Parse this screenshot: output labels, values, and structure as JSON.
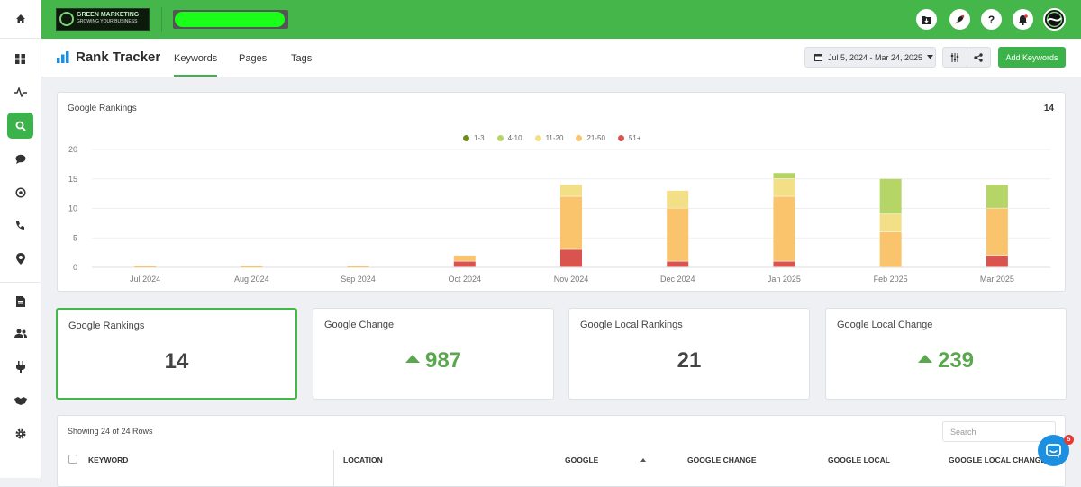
{
  "app": {
    "logo_text": "GREEN MARKETING",
    "logo_tagline": "GROWING YOUR BUSINESS"
  },
  "sidebar": {
    "items": [
      {
        "name": "home",
        "icon": "home-icon"
      },
      {
        "name": "dashboard",
        "icon": "grid-icon"
      },
      {
        "name": "activity",
        "icon": "pulse-icon"
      },
      {
        "name": "seo",
        "icon": "search-icon",
        "active": true
      },
      {
        "name": "messages",
        "icon": "chat-icon"
      },
      {
        "name": "reviews",
        "icon": "dialog-icon"
      },
      {
        "name": "calls",
        "icon": "phone-icon"
      },
      {
        "name": "locations",
        "icon": "map-pin-icon"
      },
      {
        "name": "reports",
        "icon": "document-icon"
      },
      {
        "name": "users",
        "icon": "users-icon"
      },
      {
        "name": "integrations",
        "icon": "plug-icon"
      },
      {
        "name": "partners",
        "icon": "handshake-icon"
      },
      {
        "name": "settings",
        "icon": "gear-icon"
      }
    ]
  },
  "topbar": {
    "icons": [
      "folder-download-icon",
      "rocket-icon",
      "help-icon",
      "bell-icon",
      "avatar"
    ]
  },
  "header": {
    "title": "Rank Tracker",
    "tabs": [
      {
        "label": "Keywords",
        "active": true
      },
      {
        "label": "Pages",
        "active": false
      },
      {
        "label": "Tags",
        "active": false
      }
    ],
    "date_range": "Jul 5, 2024 - Mar 24, 2025",
    "add_button": "Add Keywords"
  },
  "chart_card": {
    "title": "Google Rankings",
    "count": "14"
  },
  "chart_data": {
    "type": "bar",
    "stacked": true,
    "categories": [
      "Jul 2024",
      "Aug 2024",
      "Sep 2024",
      "Oct 2024",
      "Nov 2024",
      "Dec 2024",
      "Jan 2025",
      "Feb 2025",
      "Mar 2025"
    ],
    "series": [
      {
        "name": "51+",
        "color": "#d9534f",
        "values": [
          0,
          0,
          0,
          1,
          3,
          1,
          1,
          0,
          2
        ]
      },
      {
        "name": "21-50",
        "color": "#f9c46b",
        "values": [
          0,
          0,
          0,
          1,
          9,
          9,
          11,
          6,
          8
        ]
      },
      {
        "name": "11-20",
        "color": "#f3df86",
        "values": [
          0,
          0,
          0,
          0,
          2,
          3,
          3,
          3,
          0
        ]
      },
      {
        "name": "4-10",
        "color": "#b5d667",
        "values": [
          0,
          0,
          0,
          0,
          0,
          0,
          1,
          6,
          4
        ]
      },
      {
        "name": "1-3",
        "color": "#6e8b1e",
        "values": [
          0,
          0,
          0,
          0,
          0,
          0,
          0,
          0,
          0
        ]
      }
    ],
    "legend_order": [
      "1-3",
      "4-10",
      "11-20",
      "21-50",
      "51+"
    ],
    "yticks": [
      0,
      5,
      10,
      15,
      20
    ],
    "ylim": [
      0,
      20
    ],
    "grid": true,
    "legend_position": "top-center"
  },
  "stats": [
    {
      "label": "Google Rankings",
      "value": "14",
      "trend": "none",
      "selected": true
    },
    {
      "label": "Google Change",
      "value": "987",
      "trend": "up",
      "selected": false
    },
    {
      "label": "Google Local Rankings",
      "value": "21",
      "trend": "none",
      "selected": false
    },
    {
      "label": "Google Local Change",
      "value": "239",
      "trend": "up",
      "selected": false
    }
  ],
  "table": {
    "showing": "Showing 24 of 24 Rows",
    "search_placeholder": "Search",
    "columns": [
      "KEYWORD",
      "LOCATION",
      "GOOGLE",
      "GOOGLE CHANGE",
      "GOOGLE LOCAL",
      "GOOGLE LOCAL CHANGE"
    ],
    "sort_column": "GOOGLE",
    "sort_dir": "asc"
  },
  "chat": {
    "badge": "5"
  }
}
